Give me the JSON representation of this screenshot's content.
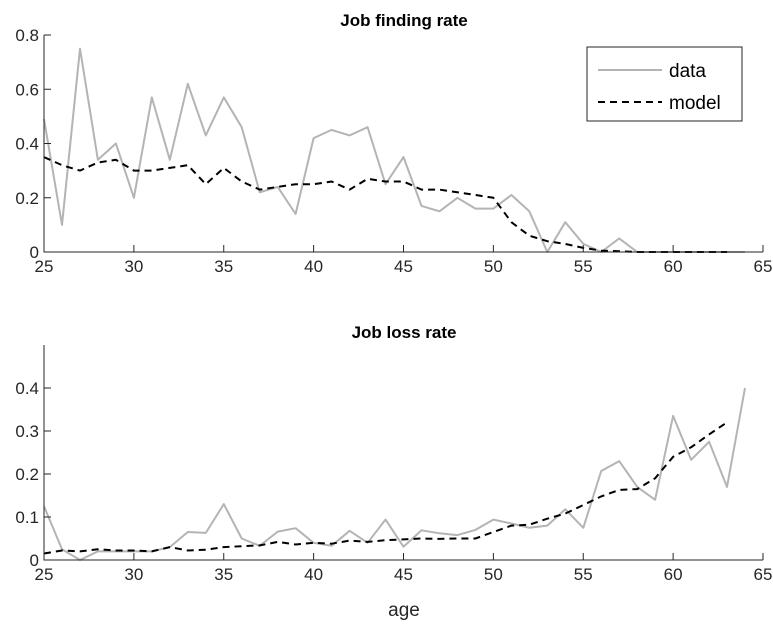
{
  "chart_data": [
    {
      "type": "line",
      "title": "Job finding rate",
      "xlabel": "",
      "ylabel": "",
      "xlim": [
        25,
        65
      ],
      "ylim": [
        0,
        0.8
      ],
      "xticks": [
        "25",
        "30",
        "35",
        "40",
        "45",
        "50",
        "55",
        "60",
        "65"
      ],
      "yticks": [
        "0",
        "0.2",
        "0.4",
        "0.6",
        "0.8"
      ],
      "legend": {
        "placement": "top-right",
        "entries": [
          "data",
          "model"
        ]
      },
      "series": [
        {
          "name": "data",
          "style": "solid",
          "color": "#b4b4b4",
          "x": [
            25,
            26,
            27,
            28,
            29,
            30,
            31,
            32,
            33,
            34,
            35,
            36,
            37,
            38,
            39,
            40,
            41,
            42,
            43,
            44,
            45,
            46,
            47,
            48,
            49,
            50,
            51,
            52,
            53,
            54,
            55,
            56,
            57,
            58,
            59,
            60,
            61,
            62,
            63,
            64
          ],
          "y": [
            0.49,
            0.1,
            0.75,
            0.34,
            0.4,
            0.2,
            0.57,
            0.34,
            0.62,
            0.43,
            0.57,
            0.46,
            0.22,
            0.24,
            0.14,
            0.42,
            0.45,
            0.43,
            0.46,
            0.25,
            0.35,
            0.17,
            0.15,
            0.2,
            0.16,
            0.16,
            0.21,
            0.15,
            0.0,
            0.11,
            0.03,
            0.0,
            0.05,
            0.0,
            0.0,
            0.0,
            0.0,
            0.0,
            0.0,
            0.0
          ]
        },
        {
          "name": "model",
          "style": "dashed",
          "color": "#000000",
          "x": [
            25,
            26,
            27,
            28,
            29,
            30,
            31,
            32,
            33,
            34,
            35,
            36,
            37,
            38,
            39,
            40,
            41,
            42,
            43,
            44,
            45,
            46,
            47,
            48,
            49,
            50,
            51,
            52,
            53,
            54,
            55,
            56,
            57,
            58,
            59,
            60,
            61,
            62,
            63
          ],
          "y": [
            0.35,
            0.32,
            0.3,
            0.33,
            0.34,
            0.3,
            0.3,
            0.31,
            0.32,
            0.25,
            0.31,
            0.26,
            0.23,
            0.24,
            0.25,
            0.25,
            0.26,
            0.23,
            0.27,
            0.26,
            0.26,
            0.23,
            0.23,
            0.22,
            0.21,
            0.2,
            0.11,
            0.06,
            0.04,
            0.03,
            0.015,
            0.005,
            0.003,
            0.0,
            0.0,
            0.0,
            0.0,
            0.0,
            0.0
          ]
        }
      ]
    },
    {
      "type": "line",
      "title": "Job loss rate",
      "xlabel": "age",
      "ylabel": "",
      "xlim": [
        25,
        65
      ],
      "ylim": [
        0,
        0.5
      ],
      "xticks": [
        "25",
        "30",
        "35",
        "40",
        "45",
        "50",
        "55",
        "60",
        "65"
      ],
      "yticks": [
        "0",
        "0.1",
        "0.2",
        "0.3",
        "0.4"
      ],
      "series": [
        {
          "name": "data",
          "style": "solid",
          "color": "#b4b4b4",
          "x": [
            25,
            26,
            27,
            28,
            29,
            30,
            31,
            32,
            33,
            34,
            35,
            36,
            37,
            38,
            39,
            40,
            41,
            42,
            43,
            44,
            45,
            46,
            47,
            48,
            49,
            50,
            51,
            52,
            53,
            54,
            55,
            56,
            57,
            58,
            59,
            60,
            61,
            62,
            63,
            64
          ],
          "y": [
            0.125,
            0.025,
            0.0,
            0.02,
            0.02,
            0.02,
            0.02,
            0.03,
            0.065,
            0.063,
            0.13,
            0.05,
            0.033,
            0.066,
            0.074,
            0.04,
            0.033,
            0.068,
            0.04,
            0.094,
            0.031,
            0.069,
            0.062,
            0.058,
            0.07,
            0.094,
            0.085,
            0.075,
            0.08,
            0.118,
            0.075,
            0.207,
            0.23,
            0.17,
            0.14,
            0.335,
            0.233,
            0.275,
            0.17,
            0.4
          ]
        },
        {
          "name": "model",
          "style": "dashed",
          "color": "#000000",
          "x": [
            25,
            26,
            27,
            28,
            29,
            30,
            31,
            32,
            33,
            34,
            35,
            36,
            37,
            38,
            39,
            40,
            41,
            42,
            43,
            44,
            45,
            46,
            47,
            48,
            49,
            50,
            51,
            52,
            53,
            54,
            55,
            56,
            57,
            58,
            59,
            60,
            61,
            62,
            63
          ],
          "y": [
            0.015,
            0.022,
            0.02,
            0.025,
            0.022,
            0.022,
            0.02,
            0.03,
            0.022,
            0.024,
            0.03,
            0.032,
            0.034,
            0.042,
            0.036,
            0.04,
            0.038,
            0.045,
            0.042,
            0.046,
            0.048,
            0.05,
            0.049,
            0.05,
            0.05,
            0.065,
            0.08,
            0.082,
            0.096,
            0.108,
            0.128,
            0.148,
            0.163,
            0.165,
            0.19,
            0.24,
            0.262,
            0.292,
            0.32
          ]
        }
      ]
    }
  ]
}
